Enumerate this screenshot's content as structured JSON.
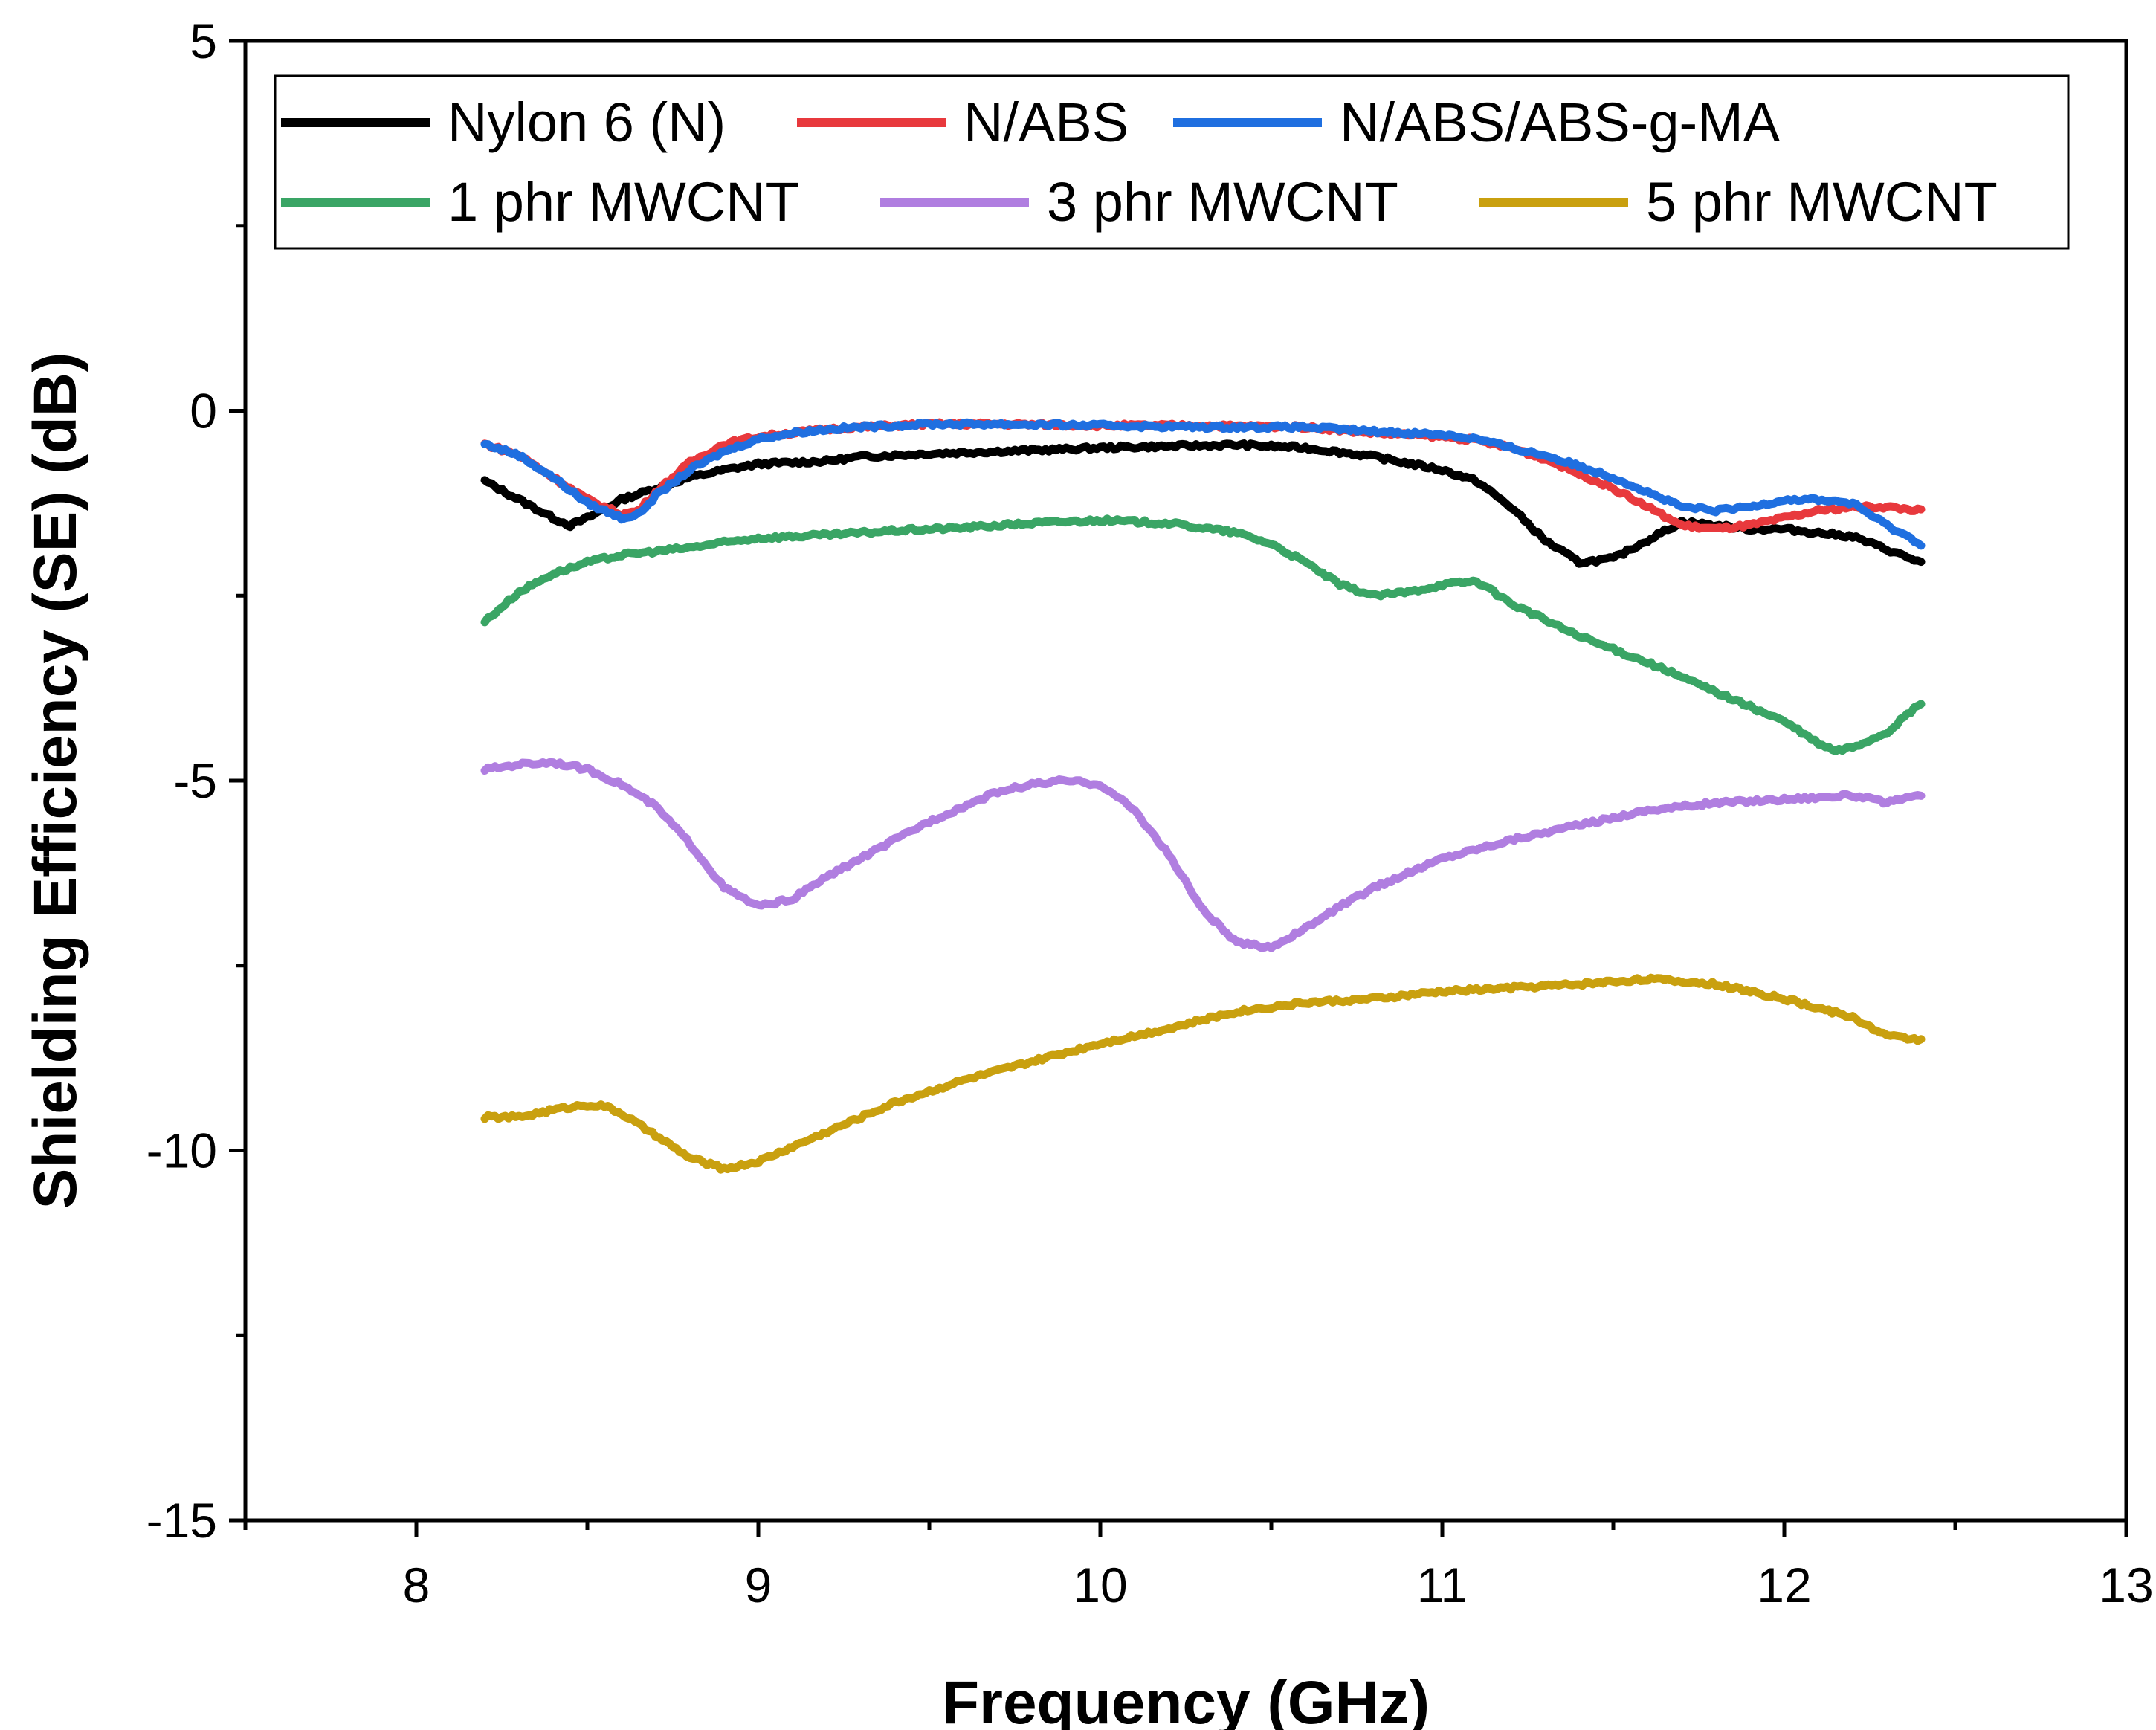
{
  "chart_data": {
    "type": "line",
    "title": "",
    "xlabel": "Frequency  (GHz)",
    "ylabel": "Shielding Efficiency (SE) (dB)",
    "xlim": [
      7.5,
      13
    ],
    "ylim": [
      -15,
      5
    ],
    "xticks": [
      8,
      9,
      10,
      11,
      12,
      13
    ],
    "yticks": [
      5,
      0,
      -5,
      -10,
      -15
    ],
    "xtick_labels": [
      "8",
      "9",
      "10",
      "11",
      "12",
      "13"
    ],
    "ytick_labels": [
      "5",
      "0",
      "-5",
      "-10",
      "-15"
    ],
    "grid": false,
    "legend_position": "top",
    "series": [
      {
        "name": "Nylon 6 (N)",
        "color": "#000000",
        "x": [
          8.2,
          8.3,
          8.4,
          8.45,
          8.5,
          8.6,
          8.7,
          8.8,
          8.9,
          9.0,
          9.1,
          9.2,
          9.3,
          9.5,
          9.7,
          9.9,
          10.0,
          10.2,
          10.4,
          10.6,
          10.8,
          11.0,
          11.1,
          11.2,
          11.3,
          11.4,
          11.5,
          11.6,
          11.7,
          11.8,
          11.9,
          12.0,
          12.2,
          12.4
        ],
        "y": [
          -0.95,
          -1.2,
          -1.45,
          -1.55,
          -1.45,
          -1.2,
          -1.05,
          -0.9,
          -0.8,
          -0.72,
          -0.7,
          -0.68,
          -0.62,
          -0.58,
          -0.55,
          -0.52,
          -0.5,
          -0.48,
          -0.46,
          -0.5,
          -0.62,
          -0.8,
          -0.95,
          -1.3,
          -1.75,
          -2.05,
          -2.0,
          -1.75,
          -1.5,
          -1.55,
          -1.6,
          -1.6,
          -1.7,
          -2.05
        ]
      },
      {
        "name": "N/ABS",
        "color": "#e8393d",
        "x": [
          8.2,
          8.3,
          8.4,
          8.5,
          8.6,
          8.65,
          8.7,
          8.8,
          8.9,
          9.0,
          9.1,
          9.2,
          9.3,
          9.5,
          9.7,
          10.0,
          10.3,
          10.6,
          10.8,
          11.0,
          11.1,
          11.2,
          11.3,
          11.4,
          11.5,
          11.6,
          11.7,
          11.8,
          11.9,
          12.0,
          12.1,
          12.2,
          12.3,
          12.4
        ],
        "y": [
          -0.45,
          -0.6,
          -0.9,
          -1.2,
          -1.4,
          -1.35,
          -1.1,
          -0.7,
          -0.45,
          -0.35,
          -0.3,
          -0.25,
          -0.22,
          -0.18,
          -0.18,
          -0.2,
          -0.2,
          -0.22,
          -0.3,
          -0.35,
          -0.4,
          -0.5,
          -0.65,
          -0.85,
          -1.05,
          -1.3,
          -1.55,
          -1.6,
          -1.55,
          -1.45,
          -1.35,
          -1.3,
          -1.3,
          -1.35
        ]
      },
      {
        "name": "N/ABS/ABS-g-MA",
        "color": "#1f6fe0",
        "x": [
          8.2,
          8.3,
          8.4,
          8.5,
          8.6,
          8.65,
          8.7,
          8.8,
          8.9,
          9.0,
          9.1,
          9.2,
          9.3,
          9.5,
          9.7,
          10.0,
          10.3,
          10.6,
          10.8,
          11.0,
          11.1,
          11.2,
          11.3,
          11.4,
          11.5,
          11.6,
          11.7,
          11.8,
          11.9,
          12.0,
          12.1,
          12.2,
          12.3,
          12.4
        ],
        "y": [
          -0.45,
          -0.6,
          -0.9,
          -1.25,
          -1.45,
          -1.4,
          -1.15,
          -0.8,
          -0.55,
          -0.38,
          -0.3,
          -0.25,
          -0.22,
          -0.18,
          -0.18,
          -0.2,
          -0.22,
          -0.22,
          -0.28,
          -0.32,
          -0.38,
          -0.5,
          -0.6,
          -0.75,
          -0.9,
          -1.1,
          -1.3,
          -1.35,
          -1.3,
          -1.2,
          -1.2,
          -1.25,
          -1.55,
          -1.8
        ]
      },
      {
        "name": "1 phr MWCNT",
        "color": "#3aa565",
        "x": [
          8.2,
          8.3,
          8.4,
          8.5,
          8.6,
          8.7,
          8.8,
          8.9,
          9.0,
          9.2,
          9.4,
          9.6,
          9.8,
          10.0,
          10.2,
          10.4,
          10.5,
          10.6,
          10.7,
          10.8,
          10.9,
          11.0,
          11.1,
          11.2,
          11.4,
          11.6,
          11.8,
          12.0,
          12.1,
          12.15,
          12.2,
          12.3,
          12.4
        ],
        "y": [
          -2.85,
          -2.45,
          -2.2,
          -2.05,
          -1.95,
          -1.9,
          -1.85,
          -1.78,
          -1.72,
          -1.68,
          -1.62,
          -1.58,
          -1.52,
          -1.48,
          -1.52,
          -1.65,
          -1.8,
          -2.05,
          -2.35,
          -2.5,
          -2.45,
          -2.35,
          -2.3,
          -2.6,
          -3.05,
          -3.4,
          -3.8,
          -4.2,
          -4.5,
          -4.6,
          -4.55,
          -4.35,
          -3.95
        ]
      },
      {
        "name": "3 phr MWCNT",
        "color": "#b07ee0",
        "x": [
          8.2,
          8.3,
          8.4,
          8.5,
          8.6,
          8.7,
          8.8,
          8.9,
          9.0,
          9.1,
          9.2,
          9.3,
          9.4,
          9.5,
          9.6,
          9.7,
          9.8,
          9.9,
          10.0,
          10.1,
          10.2,
          10.3,
          10.4,
          10.5,
          10.6,
          10.7,
          10.8,
          10.9,
          11.0,
          11.2,
          11.4,
          11.6,
          11.8,
          12.0,
          12.2,
          12.3,
          12.4
        ],
        "y": [
          -4.85,
          -4.78,
          -4.75,
          -4.85,
          -5.05,
          -5.35,
          -5.85,
          -6.45,
          -6.7,
          -6.6,
          -6.3,
          -6.05,
          -5.8,
          -5.55,
          -5.35,
          -5.15,
          -5.05,
          -5.0,
          -5.05,
          -5.4,
          -6.0,
          -6.75,
          -7.2,
          -7.25,
          -7.0,
          -6.7,
          -6.45,
          -6.25,
          -6.05,
          -5.8,
          -5.6,
          -5.4,
          -5.3,
          -5.25,
          -5.2,
          -5.3,
          -5.2
        ]
      },
      {
        "name": "5 phr MWCNT",
        "color": "#c9a00f",
        "x": [
          8.2,
          8.3,
          8.4,
          8.5,
          8.55,
          8.6,
          8.7,
          8.8,
          8.9,
          9.0,
          9.1,
          9.2,
          9.3,
          9.4,
          9.5,
          9.6,
          9.8,
          10.0,
          10.2,
          10.4,
          10.6,
          10.8,
          11.0,
          11.2,
          11.4,
          11.6,
          11.8,
          12.0,
          12.2,
          12.3,
          12.4
        ],
        "y": [
          -9.55,
          -9.55,
          -9.45,
          -9.38,
          -9.4,
          -9.5,
          -9.8,
          -10.1,
          -10.25,
          -10.15,
          -9.95,
          -9.75,
          -9.55,
          -9.35,
          -9.2,
          -9.05,
          -8.8,
          -8.55,
          -8.35,
          -8.12,
          -8.0,
          -7.95,
          -7.85,
          -7.8,
          -7.75,
          -7.68,
          -7.75,
          -7.95,
          -8.2,
          -8.45,
          -8.5
        ]
      }
    ]
  }
}
